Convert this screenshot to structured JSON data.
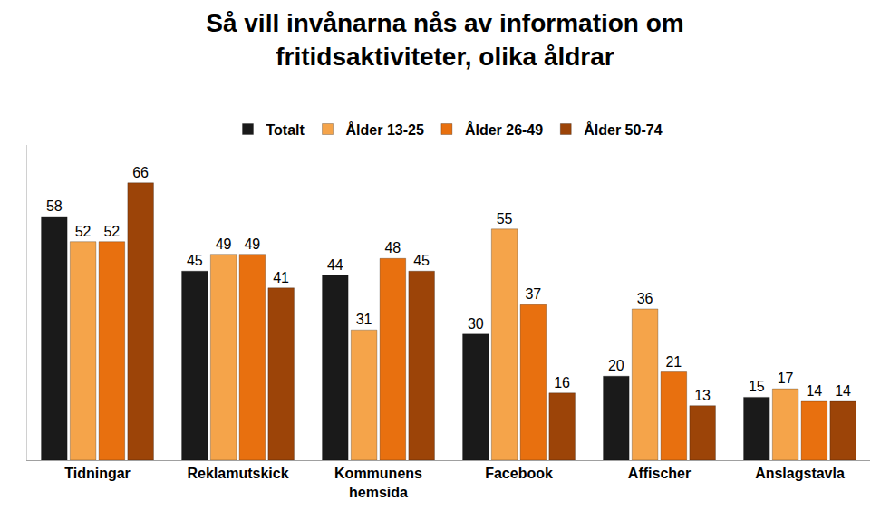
{
  "chart_data": {
    "type": "bar",
    "title": "Så vill invånarna nås av information om fritidsaktiviteter, olika åldrar",
    "categories": [
      "Tidningar",
      "Reklamutskick",
      "Kommunens hemsida",
      "Facebook",
      "Affischer",
      "Anslagstavla"
    ],
    "series": [
      {
        "name": "Totalt",
        "color": "#1a1a1a",
        "values": [
          58,
          45,
          44,
          30,
          20,
          15
        ]
      },
      {
        "name": "Ålder 13-25",
        "color": "#f5a44a",
        "values": [
          52,
          49,
          31,
          55,
          36,
          17
        ]
      },
      {
        "name": "Ålder 26-49",
        "color": "#e8700f",
        "values": [
          52,
          49,
          48,
          37,
          21,
          14
        ]
      },
      {
        "name": "Ålder 50-74",
        "color": "#9c4408",
        "values": [
          66,
          41,
          45,
          16,
          13,
          14
        ]
      }
    ],
    "ylim": [
      0,
      75
    ],
    "tick_labels": "x",
    "grid": false,
    "legend": "top",
    "data_labels": true
  }
}
